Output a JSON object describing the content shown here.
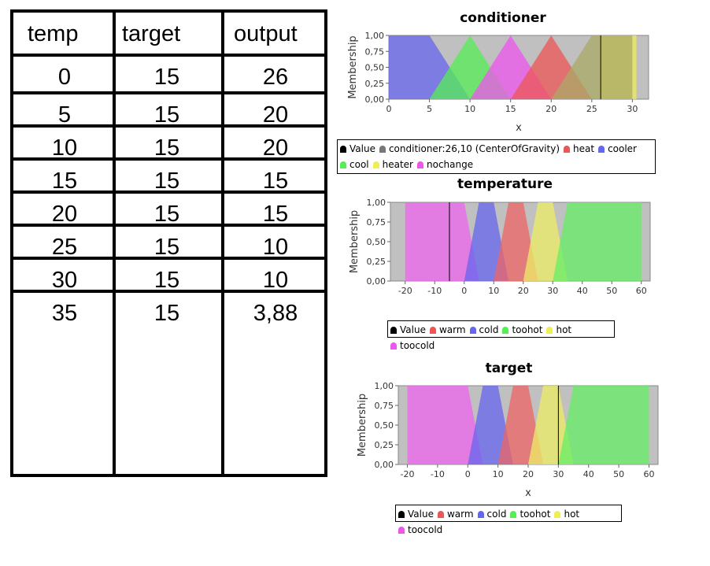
{
  "table": {
    "headers": [
      "temp",
      "target",
      "output"
    ],
    "rows": [
      [
        "0",
        "15",
        "26"
      ],
      [
        "5",
        "15",
        "20"
      ],
      [
        "10",
        "15",
        "20"
      ],
      [
        "15",
        "15",
        "15"
      ],
      [
        "20",
        "15",
        "15"
      ],
      [
        "25",
        "15",
        "10"
      ],
      [
        "30",
        "15",
        "10"
      ],
      [
        "35",
        "15",
        "3,88"
      ]
    ]
  },
  "chart_data": [
    {
      "type": "area",
      "title": "conditioner",
      "xlabel": "x",
      "ylabel": "Membership",
      "xlim": [
        0,
        32
      ],
      "ylim": [
        0,
        1
      ],
      "x_ticks": [
        "0",
        "5",
        "10",
        "15",
        "20",
        "25",
        "30"
      ],
      "y_ticks": [
        "0,00",
        "0,25",
        "0,50",
        "0,75",
        "1,00"
      ],
      "grid": false,
      "marker_value": 26.1,
      "series": [
        {
          "name": "heater",
          "color": "#eeee55",
          "points": [
            [
              26,
              0
            ],
            [
              26,
              1
            ],
            [
              30.5,
              1
            ],
            [
              30.5,
              0
            ]
          ]
        },
        {
          "name": "cooler",
          "color": "#6666ee",
          "points": [
            [
              0,
              0
            ],
            [
              0,
              1
            ],
            [
              5,
              1
            ],
            [
              10,
              0
            ]
          ]
        },
        {
          "name": "cool",
          "color": "#55ee55",
          "points": [
            [
              5,
              0
            ],
            [
              10,
              1
            ],
            [
              15,
              0
            ]
          ]
        },
        {
          "name": "nochange",
          "color": "#ee55ee",
          "points": [
            [
              10,
              0
            ],
            [
              15,
              1
            ],
            [
              20,
              0
            ]
          ]
        },
        {
          "name": "heat",
          "color": "#ee5555",
          "points": [
            [
              15,
              0
            ],
            [
              20,
              1
            ],
            [
              25,
              0
            ]
          ]
        },
        {
          "name": "",
          "color": "#aaaa66",
          "points": [
            [
              20,
              0
            ],
            [
              25,
              1
            ],
            [
              30,
              1
            ],
            [
              30,
              0
            ]
          ]
        }
      ],
      "legend": [
        {
          "label": "Value",
          "color": "#000000"
        },
        {
          "label": "conditioner:26,10 (CenterOfGravity)",
          "color": "#777777"
        },
        {
          "label": "heat",
          "color": "#ee5555"
        },
        {
          "label": "cooler",
          "color": "#6666ee"
        },
        {
          "label": "cool",
          "color": "#55ee55"
        },
        {
          "label": "heater",
          "color": "#eeee55"
        },
        {
          "label": "nochange",
          "color": "#ee55ee"
        }
      ]
    },
    {
      "type": "area",
      "title": "temperature",
      "xlabel": "",
      "ylabel": "Membership",
      "xlim": [
        -25,
        63
      ],
      "ylim": [
        0,
        1
      ],
      "x_ticks": [
        "-20",
        "-10",
        "0",
        "10",
        "20",
        "30",
        "40",
        "50",
        "60"
      ],
      "y_ticks": [
        "0,00",
        "0,25",
        "0,50",
        "0,75",
        "1,00"
      ],
      "grid": false,
      "marker_value": -5,
      "series": [
        {
          "name": "toocold",
          "color": "#ee66ee",
          "points": [
            [
              -20,
              0
            ],
            [
              -20,
              1
            ],
            [
              0,
              1
            ],
            [
              5,
              0
            ]
          ]
        },
        {
          "name": "cold",
          "color": "#6666ee",
          "points": [
            [
              0,
              0
            ],
            [
              5,
              1
            ],
            [
              10,
              1
            ],
            [
              15,
              0
            ]
          ]
        },
        {
          "name": "warm",
          "color": "#ee6666",
          "points": [
            [
              10,
              0
            ],
            [
              15,
              1
            ],
            [
              20,
              1
            ],
            [
              25,
              0
            ]
          ]
        },
        {
          "name": "hot",
          "color": "#eeee66",
          "points": [
            [
              20,
              0
            ],
            [
              25,
              1
            ],
            [
              30,
              1
            ],
            [
              35,
              0
            ]
          ]
        },
        {
          "name": "toohot",
          "color": "#66ee66",
          "points": [
            [
              30,
              0
            ],
            [
              35,
              1
            ],
            [
              60,
              1
            ],
            [
              60,
              0
            ]
          ]
        }
      ],
      "legend": [
        {
          "label": "Value",
          "color": "#000000"
        },
        {
          "label": "warm",
          "color": "#ee5555"
        },
        {
          "label": "cold",
          "color": "#6666ee"
        },
        {
          "label": "toohot",
          "color": "#55ee55"
        },
        {
          "label": "hot",
          "color": "#eeee55"
        },
        {
          "label": "toocold",
          "color": "#ee55ee"
        }
      ]
    },
    {
      "type": "area",
      "title": "target",
      "xlabel": "x",
      "ylabel": "Membership",
      "xlim": [
        -23,
        63
      ],
      "ylim": [
        0,
        1
      ],
      "x_ticks": [
        "-20",
        "-10",
        "0",
        "10",
        "20",
        "30",
        "40",
        "50",
        "60"
      ],
      "y_ticks": [
        "0,00",
        "0,25",
        "0,50",
        "0,75",
        "1,00"
      ],
      "grid": false,
      "marker_value": 30,
      "series": [
        {
          "name": "toocold",
          "color": "#ee66ee",
          "points": [
            [
              -20,
              0
            ],
            [
              -20,
              1
            ],
            [
              0,
              1
            ],
            [
              5,
              0
            ]
          ]
        },
        {
          "name": "cold",
          "color": "#6666ee",
          "points": [
            [
              0,
              0
            ],
            [
              5,
              1
            ],
            [
              10,
              1
            ],
            [
              15,
              0
            ]
          ]
        },
        {
          "name": "warm",
          "color": "#ee6666",
          "points": [
            [
              10,
              0
            ],
            [
              15,
              1
            ],
            [
              20,
              1
            ],
            [
              25,
              0
            ]
          ]
        },
        {
          "name": "hot",
          "color": "#eeee66",
          "points": [
            [
              20,
              0
            ],
            [
              25,
              1
            ],
            [
              30,
              1
            ],
            [
              35,
              0
            ]
          ]
        },
        {
          "name": "toohot",
          "color": "#66ee66",
          "points": [
            [
              30,
              0
            ],
            [
              35,
              1
            ],
            [
              60,
              1
            ],
            [
              60,
              0
            ]
          ]
        }
      ],
      "legend": [
        {
          "label": "Value",
          "color": "#000000"
        },
        {
          "label": "warm",
          "color": "#ee5555"
        },
        {
          "label": "cold",
          "color": "#6666ee"
        },
        {
          "label": "toohot",
          "color": "#55ee55"
        },
        {
          "label": "hot",
          "color": "#eeee55"
        },
        {
          "label": "toocold",
          "color": "#ee55ee"
        }
      ]
    }
  ]
}
